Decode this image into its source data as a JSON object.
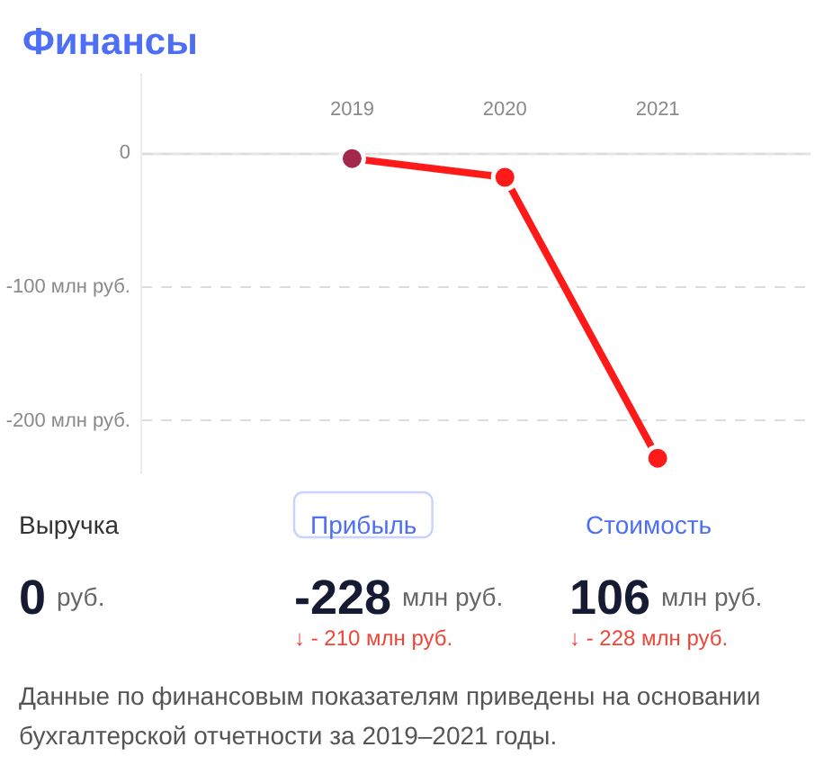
{
  "chart_data": [
    {
      "type": "line",
      "title": "Финансы",
      "categories": [
        "2019",
        "2020",
        "2021"
      ],
      "values": [
        -4,
        -18,
        -228
      ],
      "color": "#ff1a1a",
      "colors": [
        "#a3284c",
        "#ff1a1a",
        "#ff1a1a"
      ],
      "ylim": [
        -240,
        60
      ],
      "yticks": [
        0,
        {
          "value": -100,
          "label": "-100 млн руб."
        },
        {
          "value": -200,
          "label": "-200 млн руб."
        }
      ],
      "grid": "y",
      "marker": "circle",
      "line_style": "solid"
    },
    {
      "type": "other",
      "annotations": [
        "Выручка",
        "Прибыль",
        "Стоимость",
        "0 руб.",
        "-228 млн руб.",
        "106 млн руб.",
        "↓ - 210 млн руб.",
        "↓ - 228 млн руб.",
        "Данные по финансовым показателям приведены на основании бухгалтерской отчетности за 2019–2021 годы."
      ]
    }
  ]
}
